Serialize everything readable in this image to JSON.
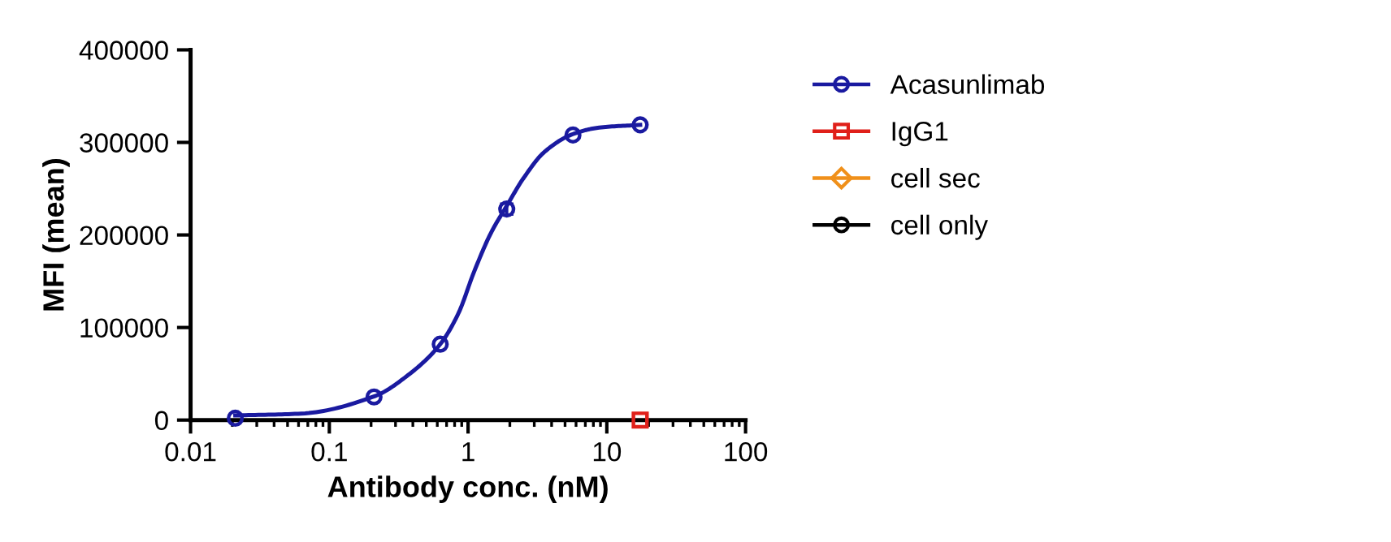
{
  "chart_data": {
    "type": "scatter",
    "xlabel": "Antibody conc. (nM)",
    "ylabel": "MFI (mean)",
    "log": "x",
    "xlim": [
      0.01,
      100
    ],
    "xticks": [
      {
        "value": 0.01,
        "label": "0.01"
      },
      {
        "value": 0.1,
        "label": "0.1"
      },
      1,
      10,
      100
    ],
    "ylim": [
      0,
      400000
    ],
    "yticks": [
      0,
      100000,
      200000,
      300000,
      400000
    ],
    "grid": false,
    "legend": "right",
    "series": [
      {
        "name": "Acasunlimab",
        "color": "#1a1aa0",
        "marker": "circle",
        "x": [
          0.021,
          0.21,
          0.63,
          1.9,
          5.7,
          17.4
        ],
        "values": [
          2000,
          25000,
          82000,
          228000,
          308000,
          319000
        ],
        "errors": [
          null,
          null,
          null,
          6000,
          null,
          null
        ]
      },
      {
        "name": "IgG1",
        "color": "#e0201a",
        "marker": "square",
        "x": [
          17.4
        ],
        "values": [
          0
        ]
      },
      {
        "name": "cell sec",
        "color": "#f0901a",
        "marker": "diamond"
      },
      {
        "name": "cell only",
        "color": "#000000",
        "marker": "circle"
      },
      {
        "type": "line",
        "color": "#1a1aa0",
        "line_style": "solid",
        "x": [
          0.021,
          0.063,
          0.214,
          0.38,
          0.63,
          0.85,
          1.11,
          1.46,
          1.91,
          2.5,
          3.57,
          5.7,
          8.8,
          17.4
        ],
        "values": [
          5000,
          7000,
          26000,
          50000,
          82000,
          115000,
          161000,
          202000,
          232000,
          261000,
          290000,
          309000,
          316000,
          319000
        ]
      }
    ]
  }
}
